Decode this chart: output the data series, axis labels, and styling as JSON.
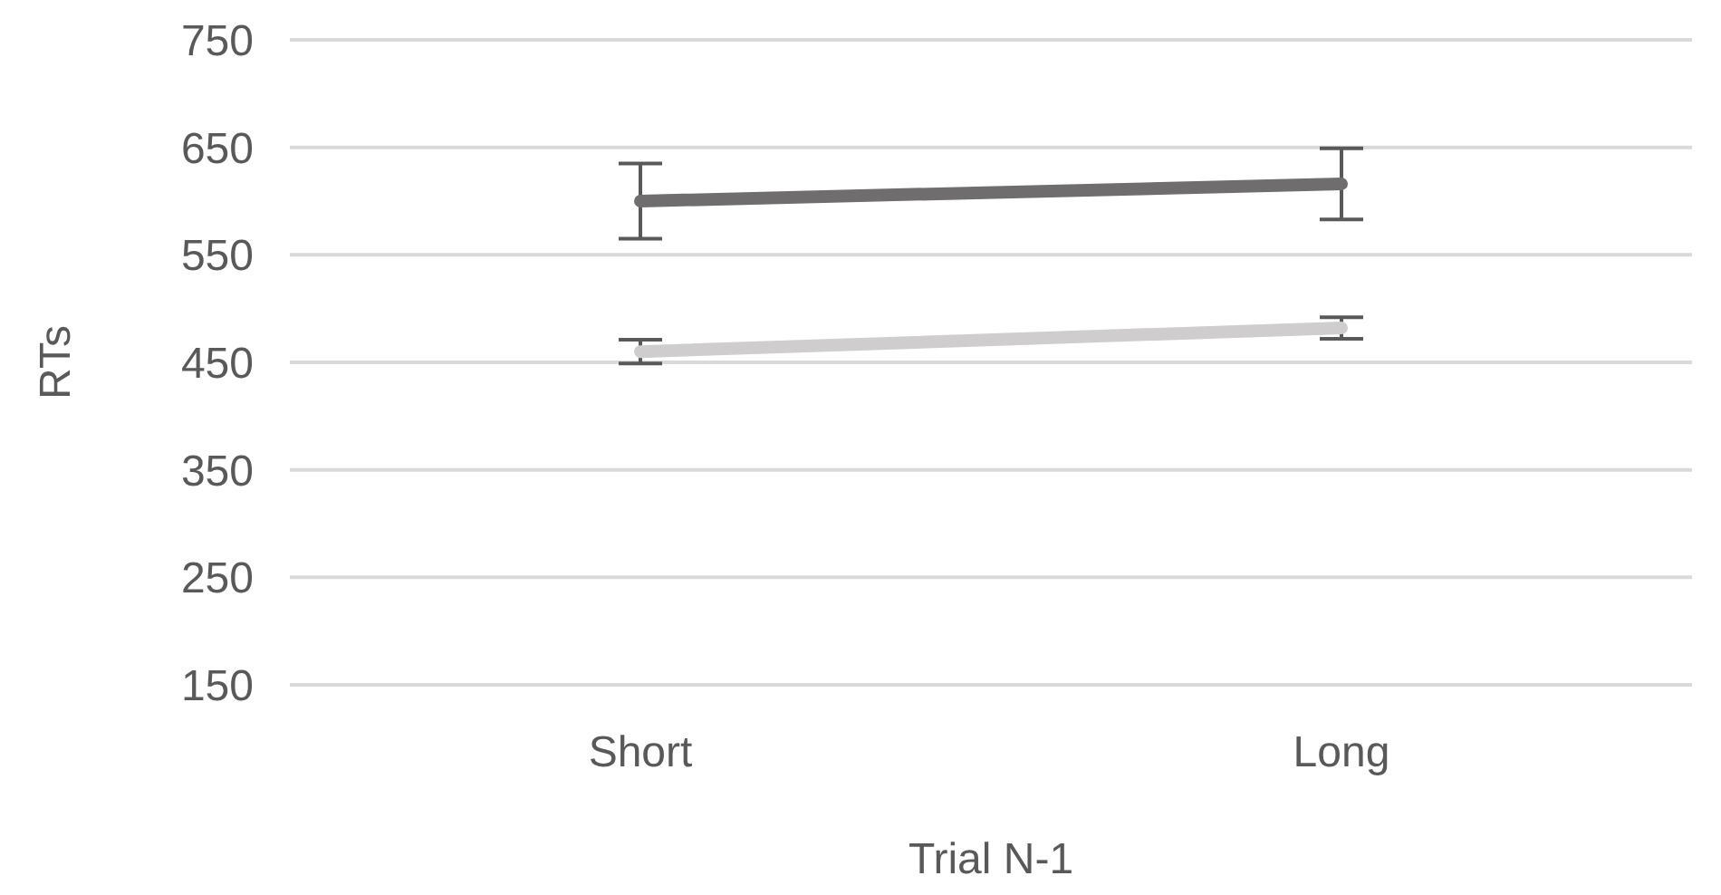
{
  "chart_data": {
    "type": "line",
    "xlabel": "Trial N-1",
    "ylabel": "RTs",
    "categories": [
      "Short",
      "Long"
    ],
    "series": [
      {
        "color": "#706d6e",
        "values": [
          600,
          616
        ],
        "errors": [
          35,
          33
        ]
      },
      {
        "color": "#cfcdce",
        "values": [
          460,
          482
        ],
        "errors": [
          11,
          10
        ]
      }
    ],
    "ylim": [
      150,
      750
    ],
    "yticks": [
      150,
      250,
      350,
      450,
      550,
      650,
      750
    ],
    "grid": "y",
    "legend": false,
    "marker": "none",
    "line_style": "solid"
  }
}
